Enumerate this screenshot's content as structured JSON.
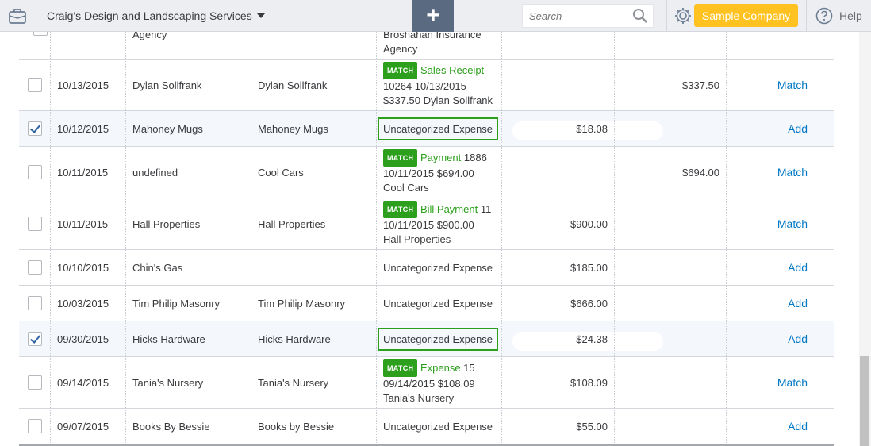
{
  "header": {
    "company_name": "Craig's Design and Landscaping Services",
    "add_button": "+",
    "search_placeholder": "Search",
    "sample_company": "Sample Company",
    "help": "Help",
    "accent_color": "#2ca01c",
    "sample_color": "#ffc220"
  },
  "partial_row": {
    "payee": "Agency",
    "category_line1": "Broshahan Insurance",
    "category_line2": "Agency"
  },
  "rows": [
    {
      "date": "10/13/2015",
      "description": "Dylan Sollfrank",
      "payee": "Dylan Sollfrank",
      "checked": false,
      "match": true,
      "match_badge": "MATCH",
      "match_type": "Sales Receipt",
      "match_suffix": "",
      "match_line2": "10264 10/13/2015",
      "match_line3": "$337.50 Dylan Sollfrank",
      "spent": "",
      "received": "$337.50",
      "action": "Match"
    },
    {
      "date": "10/12/2015",
      "description": "Mahoney Mugs",
      "payee": "Mahoney Mugs",
      "checked": true,
      "match": false,
      "category": "Uncategorized Expense",
      "spent": "$18.08",
      "received": "",
      "action": "Add"
    },
    {
      "date": "10/11/2015",
      "description": "undefined",
      "payee": "Cool Cars",
      "checked": false,
      "match": true,
      "match_badge": "MATCH",
      "match_type": "Payment",
      "match_suffix": " 1886",
      "match_line2": "10/11/2015 $694.00",
      "match_line3": "Cool Cars",
      "spent": "",
      "received": "$694.00",
      "action": "Match"
    },
    {
      "date": "10/11/2015",
      "description": "Hall Properties",
      "payee": "Hall Properties",
      "checked": false,
      "match": true,
      "match_badge": "MATCH",
      "match_type": "Bill Payment",
      "match_suffix": " 11",
      "match_line2": "10/11/2015 $900.00",
      "match_line3": "Hall Properties",
      "spent": "$900.00",
      "received": "",
      "action": "Match"
    },
    {
      "date": "10/10/2015",
      "description": "Chin's Gas",
      "payee": "",
      "checked": false,
      "match": false,
      "category": "Uncategorized Expense",
      "spent": "$185.00",
      "received": "",
      "action": "Add"
    },
    {
      "date": "10/03/2015",
      "description": "Tim Philip Masonry",
      "payee": "Tim Philip Masonry",
      "checked": false,
      "match": false,
      "category": "Uncategorized Expense",
      "spent": "$666.00",
      "received": "",
      "action": "Add"
    },
    {
      "date": "09/30/2015",
      "description": "Hicks Hardware",
      "payee": "Hicks Hardware",
      "checked": true,
      "match": false,
      "category": "Uncategorized Expense",
      "spent": "$24.38",
      "received": "",
      "action": "Add"
    },
    {
      "date": "09/14/2015",
      "description": "Tania's Nursery",
      "payee": "Tania's Nursery",
      "checked": false,
      "match": true,
      "match_badge": "MATCH",
      "match_type": "Expense",
      "match_suffix": " 15",
      "match_line2": "09/14/2015 $108.09",
      "match_line3": "Tania's Nursery",
      "spent": "$108.09",
      "received": "",
      "action": "Match"
    },
    {
      "date": "09/07/2015",
      "description": "Books By Bessie",
      "payee": "Books by Bessie",
      "checked": false,
      "match": false,
      "category": "Uncategorized Expense",
      "spent": "$55.00",
      "received": "",
      "action": "Add"
    }
  ]
}
